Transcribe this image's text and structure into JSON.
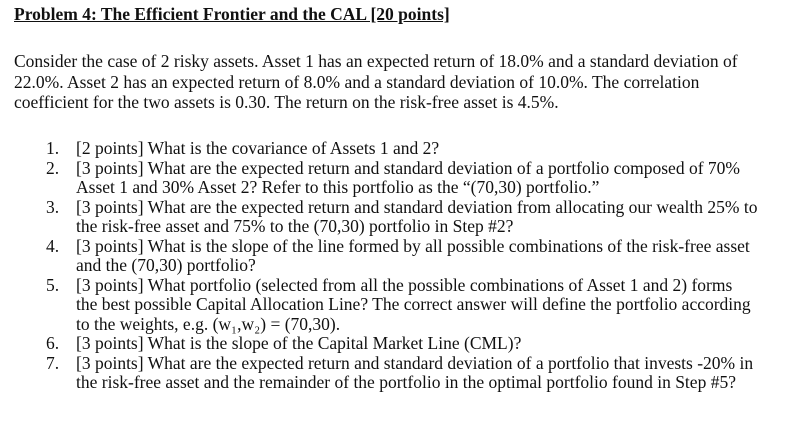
{
  "title": "Problem 4: The Efficient Frontier and the CAL [20 points]",
  "intro": {
    "line1": "Consider the case of 2 risky assets.  Asset 1 has an expected return of 18.0% and a standard deviation of",
    "line2": "22.0%.  Asset 2 has an expected return of 8.0% and a standard deviation of 10.0%.  The correlation",
    "line3": "coefficient for the two assets is 0.30.  The return on the risk-free asset is 4.5%."
  },
  "questions": [
    {
      "num": "1.",
      "lines": [
        "[2 points]  What is the covariance of Assets 1 and 2?"
      ]
    },
    {
      "num": "2.",
      "lines": [
        "[3 points]  What are the expected return and standard deviation of a portfolio composed of 70%",
        "Asset 1 and 30% Asset 2?  Refer to this portfolio as the “(70,30) portfolio.”"
      ]
    },
    {
      "num": "3.",
      "lines": [
        "[3 points]  What are the expected return and standard deviation from allocating our wealth 25% to",
        "the risk-free asset and 75% to the (70,30) portfolio in Step #2?"
      ]
    },
    {
      "num": "4.",
      "lines": [
        "[3 points]  What is the slope of the line formed by all possible combinations of the risk-free asset",
        "and the (70,30) portfolio?"
      ]
    },
    {
      "num": "5.",
      "lines": [
        "[3 points]  What portfolio (selected from all the possible combinations of Asset 1 and 2) forms",
        "the best possible Capital Allocation Line?  The correct answer will define the portfolio according",
        "to the weights, e.g. (w₁,w₂) = (70,30)."
      ]
    },
    {
      "num": "6.",
      "lines": [
        "[3 points]  What is the slope of the Capital Market Line (CML)?"
      ]
    },
    {
      "num": "7.",
      "lines": [
        "[3 points]  What are the expected return and standard deviation of a portfolio that invests -20% in",
        "the risk-free asset and the remainder of the portfolio in the optimal portfolio found in Step #5?"
      ]
    }
  ]
}
